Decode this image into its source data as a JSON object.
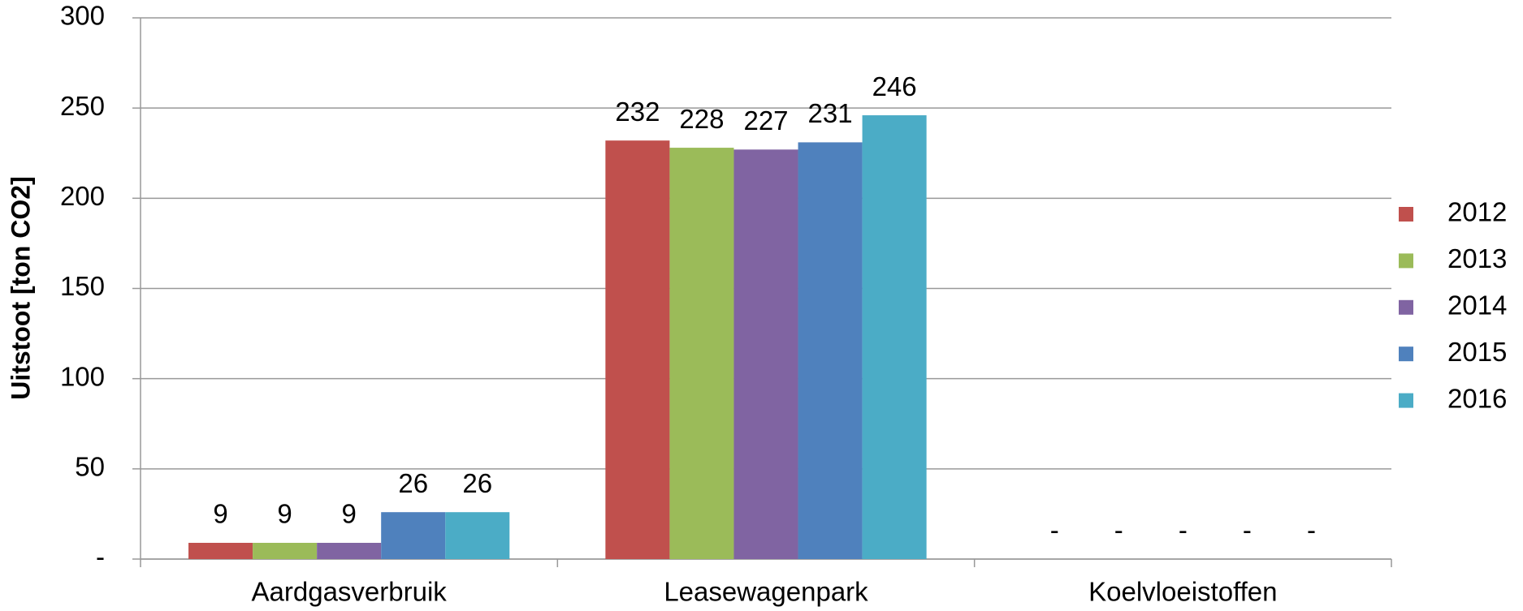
{
  "chart_data": {
    "type": "bar",
    "y_label": "Uitstoot [ton CO2]",
    "categories": [
      "Aardgasverbruik",
      "Leasewagenpark",
      "Koelvloeistoffen"
    ],
    "series": [
      {
        "name": "2012",
        "color": "#c0504d",
        "values": [
          9,
          232,
          0
        ],
        "value_labels": [
          "9",
          "232",
          "-"
        ]
      },
      {
        "name": "2013",
        "color": "#9bbb59",
        "values": [
          9,
          228,
          0
        ],
        "value_labels": [
          "9",
          "228",
          "-"
        ]
      },
      {
        "name": "2014",
        "color": "#8064a2",
        "values": [
          9,
          227,
          0
        ],
        "value_labels": [
          "9",
          "227",
          "-"
        ]
      },
      {
        "name": "2015",
        "color": "#4f81bd",
        "values": [
          26,
          231,
          0
        ],
        "value_labels": [
          "26",
          "231",
          "-"
        ]
      },
      {
        "name": "2016",
        "color": "#4bacc6",
        "values": [
          26,
          246,
          0
        ],
        "value_labels": [
          "26",
          "246",
          "-"
        ]
      }
    ],
    "ylim": [
      0,
      300
    ],
    "yticks": [
      {
        "value": 0,
        "label": "-"
      },
      50,
      100,
      150,
      200,
      250,
      300
    ],
    "grid": true,
    "legend": "right"
  }
}
